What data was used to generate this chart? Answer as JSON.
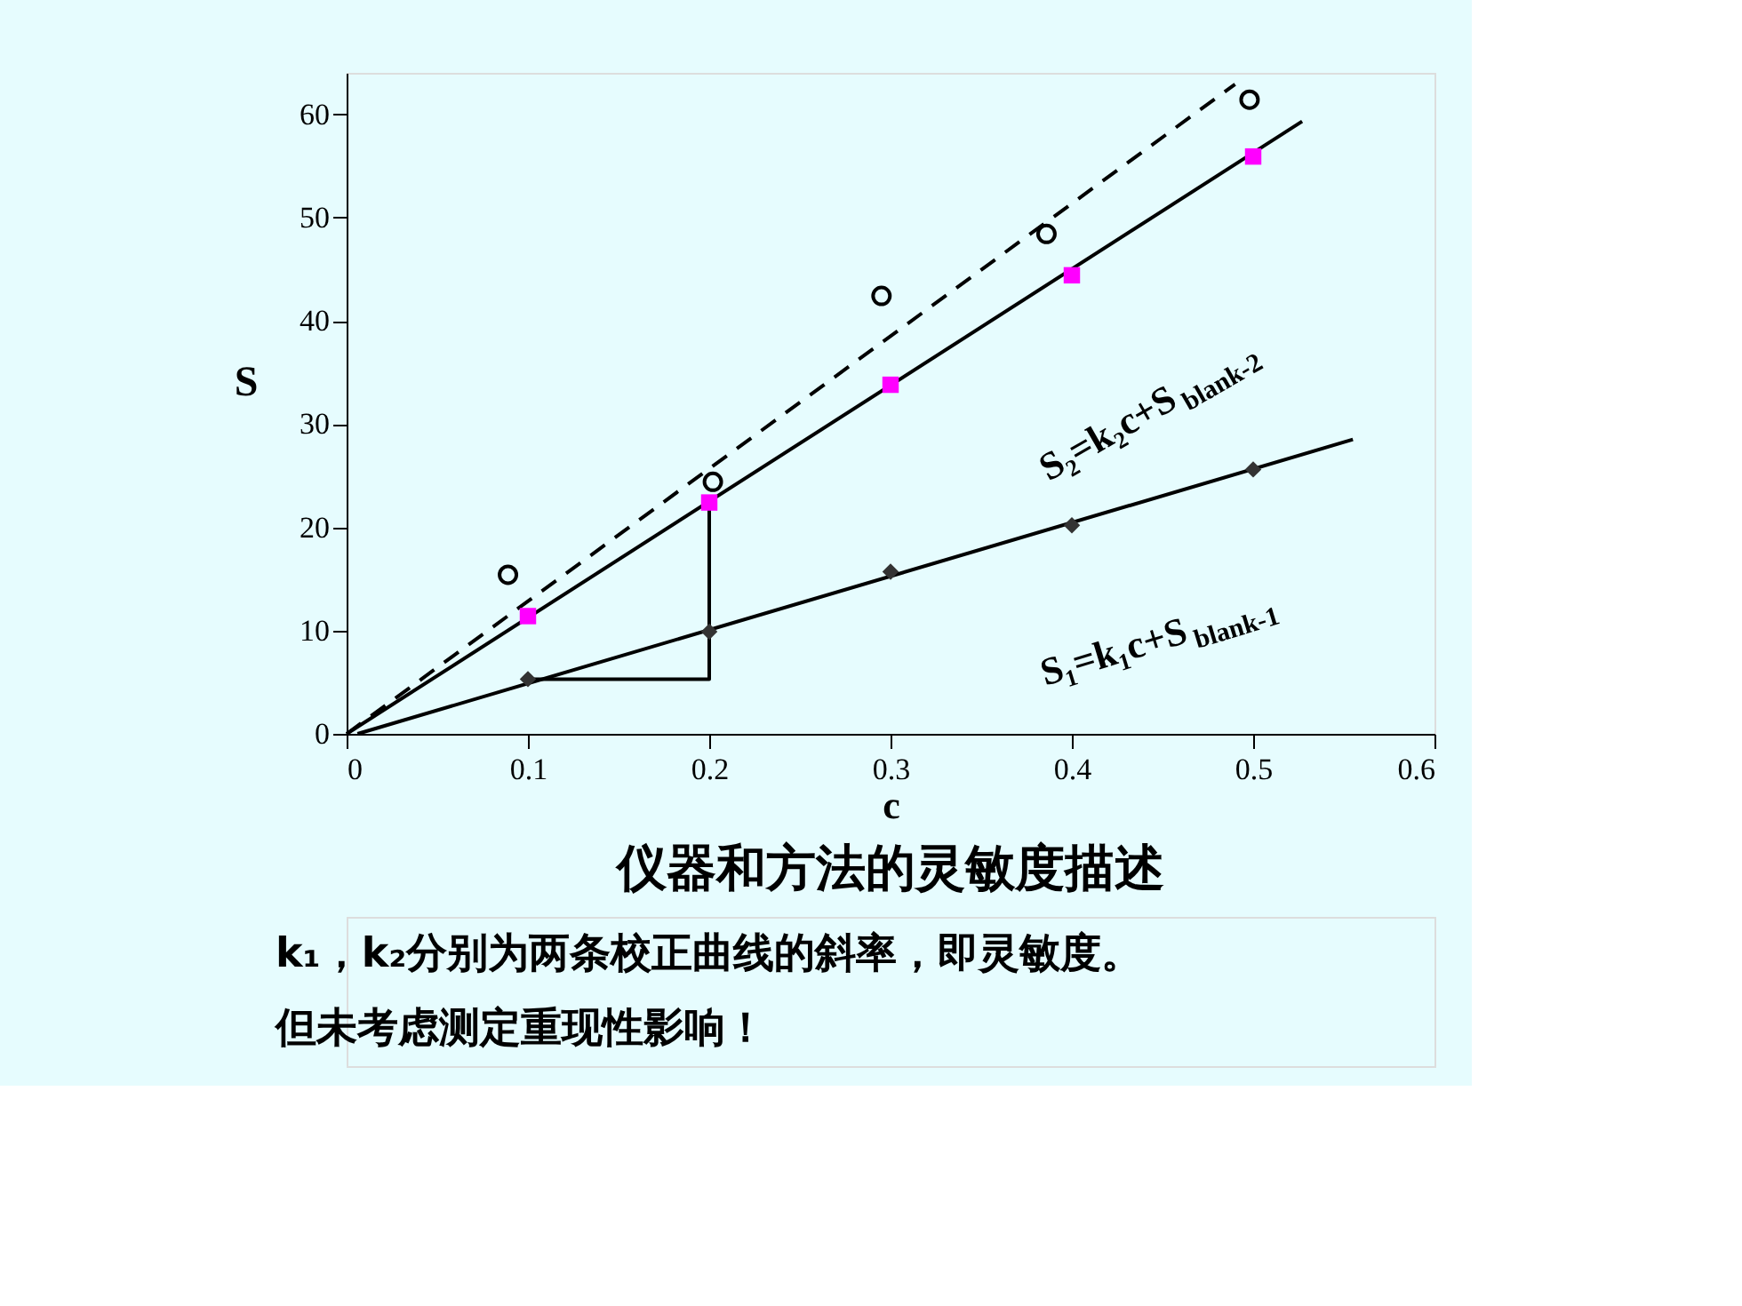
{
  "chart_data": {
    "type": "scatter",
    "title": "仪器和方法的灵敏度描述",
    "xlabel": "c",
    "ylabel": "S",
    "xlim": [
      0,
      0.6
    ],
    "xticks": [
      0,
      0.1,
      0.2,
      0.3,
      0.4,
      0.5,
      0.6
    ],
    "ylim": [
      0,
      64
    ],
    "yticks": [
      0,
      10,
      20,
      30,
      40,
      50,
      60
    ],
    "grid": false,
    "series": [
      {
        "marker": "diamond",
        "color": "#333333",
        "x": [
          0.1,
          0.2,
          0.3,
          0.4,
          0.5
        ],
        "values": [
          5.3,
          9.9,
          15.7,
          20.2,
          25.6
        ]
      },
      {
        "marker": "square",
        "color": "#ff00ff",
        "x": [
          0.1,
          0.2,
          0.3,
          0.4,
          0.5
        ],
        "values": [
          11.4,
          22.4,
          33.8,
          44.4,
          55.9
        ]
      },
      {
        "marker": "circle",
        "color": "#000000",
        "x": [
          0.089,
          0.202,
          0.295,
          0.386,
          0.498
        ],
        "values": [
          15.4,
          24.4,
          42.4,
          48.4,
          61.4
        ]
      },
      {
        "type": "line",
        "line_style": "solid",
        "color": "#000000",
        "x": [
          0.006,
          0.555
        ],
        "values": [
          0,
          28.5
        ]
      },
      {
        "type": "line",
        "line_style": "solid",
        "color": "#000000",
        "x": [
          0,
          0.527
        ],
        "values": [
          0,
          59.3
        ]
      },
      {
        "type": "line",
        "line_style": "dashed",
        "color": "#000000",
        "x": [
          0,
          0.49
        ],
        "values": [
          0,
          62.9
        ]
      },
      {
        "type": "line",
        "line_style": "solid",
        "color": "#000000",
        "x": [
          0.1,
          0.2,
          0.2
        ],
        "values": [
          5.3,
          5.3,
          22.4
        ]
      }
    ],
    "annotations": [
      "S₂=k₂c+S$_{blank-2}$",
      "S₁=k₁c+S$_{blank-1}$",
      "k₁，k₂分别为两条校正曲线的斜率，即灵敏度。",
      "但未考虑测定重现性影响！"
    ]
  }
}
